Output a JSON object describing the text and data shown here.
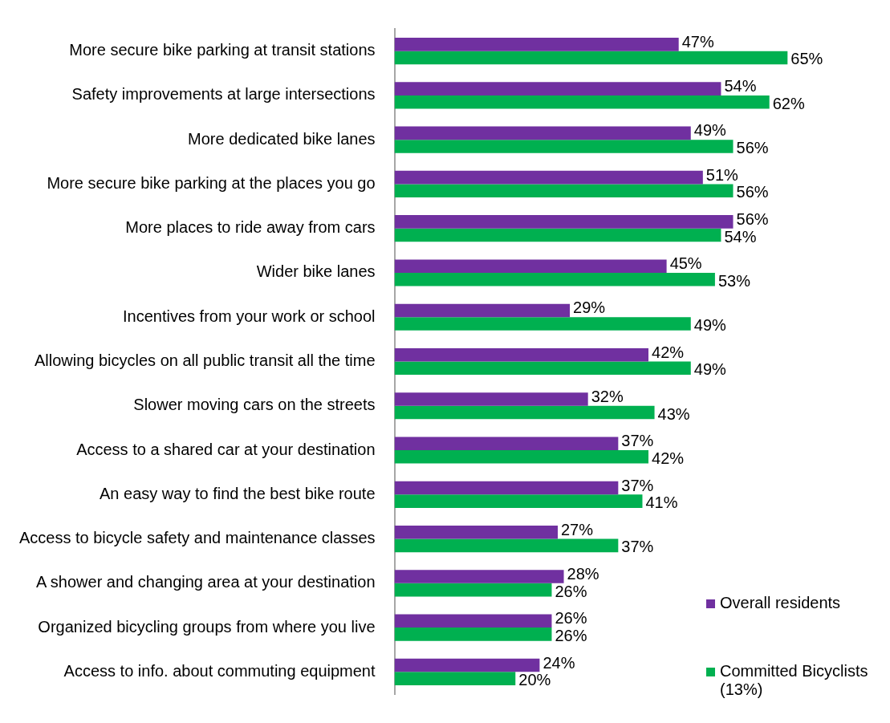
{
  "chart_data": {
    "type": "bar",
    "orientation": "horizontal",
    "legend": "bottom right",
    "tick_labels": "y",
    "categories": [
      "More secure bike parking at transit stations",
      "Safety improvements at large intersections",
      "More dedicated bike lanes",
      "More secure bike parking at the places you go",
      "More places to ride away from cars",
      "Wider bike lanes",
      "Incentives from your work or school",
      "Allowing bicycles on all public transit all the time",
      "Slower moving cars on the streets",
      "Access to a shared car at your destination",
      "An easy way to find the best bike route",
      "Access to bicycle safety and maintenance classes",
      "A shower and changing area at your destination",
      "Organized bicycling groups from where you live",
      "Access to info. about commuting equipment"
    ],
    "series": [
      {
        "name": "Overall residents",
        "color": "#7030a0",
        "values": [
          47,
          54,
          49,
          51,
          56,
          45,
          29,
          42,
          32,
          37,
          37,
          27,
          28,
          26,
          24
        ],
        "value_labels": [
          "47%",
          "54%",
          "49%",
          "51%",
          "56%",
          "45%",
          "29%",
          "42%",
          "32%",
          "37%",
          "37%",
          "27%",
          "28%",
          "26%",
          "24%"
        ]
      },
      {
        "name": "Committed Bicyclists (13%)",
        "color": "#00b050",
        "values": [
          65,
          62,
          56,
          56,
          54,
          53,
          49,
          49,
          43,
          42,
          41,
          37,
          26,
          26,
          20
        ],
        "value_labels": [
          "65%",
          "62%",
          "56%",
          "56%",
          "54%",
          "53%",
          "49%",
          "49%",
          "43%",
          "42%",
          "41%",
          "37%",
          "26%",
          "26%",
          "20%"
        ]
      }
    ]
  }
}
